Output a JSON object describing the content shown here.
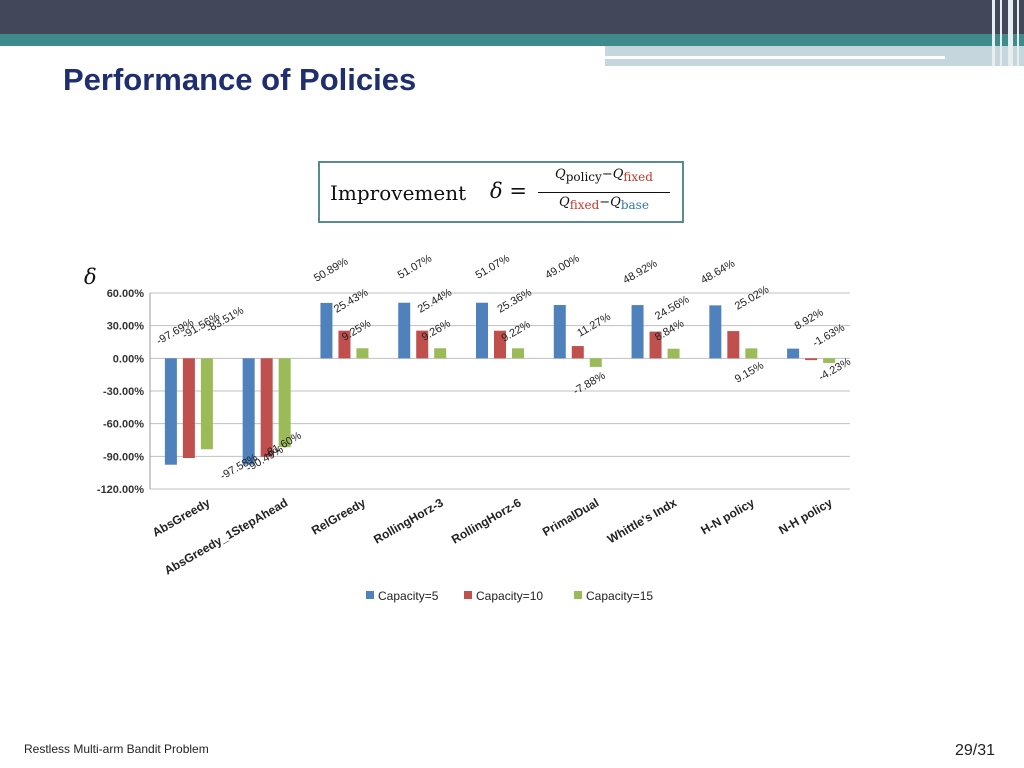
{
  "slide": {
    "title": "Performance of Policies",
    "footer_left": "Restless Multi-arm Bandit Problem",
    "page_number": "29/31"
  },
  "formula": {
    "word": "Improvement",
    "lhs": "δ =",
    "num_q1": "Q",
    "num_s1": "policy",
    "minus": "−",
    "num_q2": "Q",
    "num_s2": "fixed",
    "den_q1": "Q",
    "den_s1": "fixed",
    "den_q2": "Q",
    "den_s2": "base"
  },
  "colors": {
    "header_dark": "#42475a",
    "header_teal": "#3f8a8a",
    "header_light": "#c5d7dd",
    "title": "#1f2f6e",
    "formula_border": "#5b8c8c"
  },
  "chart_data": {
    "type": "bar",
    "ylabel": "δ",
    "ylim": [
      -120,
      60
    ],
    "yticks": [
      60,
      30,
      0,
      -30,
      -60,
      -90,
      -120
    ],
    "ytick_labels": [
      "60.00%",
      "30.00%",
      "0.00%",
      "-30.00%",
      "-60.00%",
      "-90.00%",
      "-120.00%"
    ],
    "grid": true,
    "legend_position": "bottom",
    "categories": [
      "AbsGreedy",
      "AbsGreedy_1StepAhead",
      "RelGreedy",
      "RollingHorz-3",
      "RollingHorz-6",
      "PrimalDual",
      "Whittle's Indx",
      "H-N policy",
      "N-H policy"
    ],
    "series": [
      {
        "name": "Capacity=5",
        "color": "#4f81bd",
        "values": [
          -97.69,
          -97.58,
          50.89,
          51.07,
          51.07,
          49.0,
          48.92,
          48.64,
          8.92
        ],
        "labels": [
          "-97.69%",
          "-97.58%",
          "50.89%",
          "51.07%",
          "51.07%",
          "49.00%",
          "48.92%",
          "48.64%",
          "8.92%"
        ]
      },
      {
        "name": "Capacity=10",
        "color": "#c0504d",
        "values": [
          -91.56,
          -90.49,
          25.43,
          25.44,
          25.36,
          11.27,
          24.56,
          25.02,
          -1.63
        ],
        "labels": [
          "-91.56%",
          "-90.49%",
          "25.43%",
          "25.44%",
          "25.36%",
          "11.27%",
          "24.56%",
          "25.02%",
          "-1.63%"
        ]
      },
      {
        "name": "Capacity=15",
        "color": "#9bbb59",
        "values": [
          -83.51,
          -81.6,
          9.25,
          9.26,
          9.22,
          -7.88,
          8.84,
          9.15,
          -4.23
        ],
        "labels": [
          "-83.51%",
          "-81.60%",
          "9.25%",
          "9.26%",
          "9.22%",
          "-7.88%",
          "8.84%",
          "9.15%",
          "-4.23%"
        ]
      }
    ]
  }
}
